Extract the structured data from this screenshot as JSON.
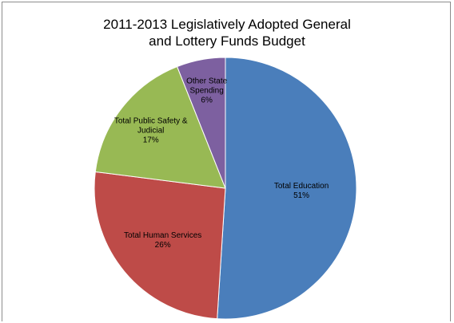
{
  "chart_data": {
    "type": "pie",
    "title_lines": [
      "2011-2013 Legislatively Adopted General",
      "and Lottery Funds Budget"
    ],
    "slices": [
      {
        "label_lines": [
          "Total Education"
        ],
        "percent_label": "51%",
        "value": 51,
        "color": "#4a7ebb"
      },
      {
        "label_lines": [
          "Total Human Services"
        ],
        "percent_label": "26%",
        "value": 26,
        "color": "#be4b48"
      },
      {
        "label_lines": [
          "Total Public Safety &",
          "Judicial"
        ],
        "percent_label": "17%",
        "value": 17,
        "color": "#98b954"
      },
      {
        "label_lines": [
          "Other State",
          "Spending"
        ],
        "percent_label": "6%",
        "value": 6,
        "color": "#7d60a0"
      }
    ],
    "start_angle_deg": 0,
    "direction": "clockwise",
    "legend": "none"
  }
}
